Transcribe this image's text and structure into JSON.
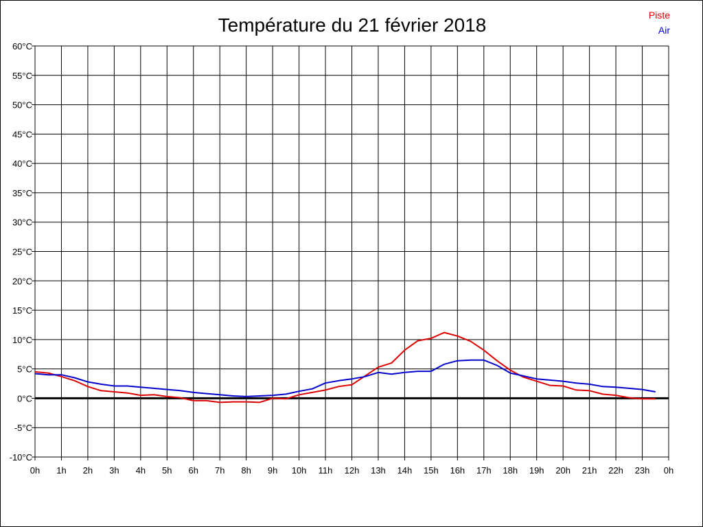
{
  "chart_data": {
    "type": "line",
    "title": "Température du 21 février 2018",
    "xlabel": "",
    "ylabel": "",
    "xlim": [
      0,
      24
    ],
    "ylim": [
      -10,
      60
    ],
    "grid": true,
    "legend_position": "top-right",
    "x_tick_labels": [
      "0h",
      "1h",
      "2h",
      "3h",
      "4h",
      "5h",
      "6h",
      "7h",
      "8h",
      "9h",
      "10h",
      "11h",
      "12h",
      "13h",
      "14h",
      "15h",
      "16h",
      "17h",
      "18h",
      "19h",
      "20h",
      "21h",
      "22h",
      "23h",
      "0h"
    ],
    "y_ticks": [
      {
        "value": -10,
        "label": "-10°C"
      },
      {
        "value": -5,
        "label": "-5°C"
      },
      {
        "value": 0,
        "label": "0°C"
      },
      {
        "value": 5,
        "label": "5°C"
      },
      {
        "value": 10,
        "label": "10°C"
      },
      {
        "value": 15,
        "label": "15°C"
      },
      {
        "value": 20,
        "label": "20°C"
      },
      {
        "value": 25,
        "label": "25°C"
      },
      {
        "value": 30,
        "label": "30°C"
      },
      {
        "value": 35,
        "label": "35°C"
      },
      {
        "value": 40,
        "label": "40°C"
      },
      {
        "value": 45,
        "label": "45°C"
      },
      {
        "value": 50,
        "label": "50°C"
      },
      {
        "value": 55,
        "label": "55°C"
      },
      {
        "value": 60,
        "label": "60°C"
      }
    ],
    "x": [
      0,
      0.5,
      1,
      1.5,
      2,
      2.5,
      3,
      3.5,
      4,
      4.5,
      5,
      5.5,
      6,
      6.5,
      7,
      7.5,
      8,
      8.5,
      9,
      9.5,
      10,
      10.5,
      11,
      11.5,
      12,
      12.5,
      13,
      13.5,
      14,
      14.5,
      15,
      15.5,
      16,
      16.5,
      17,
      17.5,
      18,
      18.5,
      19,
      19.5,
      20,
      20.5,
      21,
      21.5,
      22,
      22.5,
      23,
      23.5
    ],
    "series": [
      {
        "name": "Piste",
        "color": "#dd0000",
        "values": [
          4.5,
          4.3,
          3.7,
          3.0,
          2.0,
          1.3,
          1.1,
          0.9,
          0.5,
          0.6,
          0.3,
          0.1,
          -0.4,
          -0.4,
          -0.7,
          -0.6,
          -0.6,
          -0.7,
          0.0,
          -0.1,
          0.6,
          1.0,
          1.4,
          2.0,
          2.3,
          3.8,
          5.3,
          6.0,
          8.2,
          9.8,
          10.2,
          11.2,
          10.6,
          9.7,
          8.2,
          6.4,
          4.8,
          3.6,
          2.9,
          2.2,
          2.1,
          1.4,
          1.3,
          0.7,
          0.5,
          0.1,
          -0.1,
          -0.1
        ]
      },
      {
        "name": "Air",
        "color": "#0000cc",
        "values": [
          4.2,
          4.0,
          4.0,
          3.5,
          2.8,
          2.4,
          2.1,
          2.1,
          1.9,
          1.7,
          1.5,
          1.3,
          1.0,
          0.8,
          0.6,
          0.4,
          0.3,
          0.4,
          0.5,
          0.7,
          1.2,
          1.6,
          2.6,
          3.0,
          3.3,
          3.7,
          4.4,
          4.1,
          4.4,
          4.6,
          4.6,
          5.8,
          6.4,
          6.5,
          6.5,
          5.6,
          4.3,
          3.8,
          3.3,
          3.1,
          2.9,
          2.6,
          2.4,
          2.0,
          1.9,
          1.7,
          1.5,
          1.1
        ]
      }
    ]
  }
}
